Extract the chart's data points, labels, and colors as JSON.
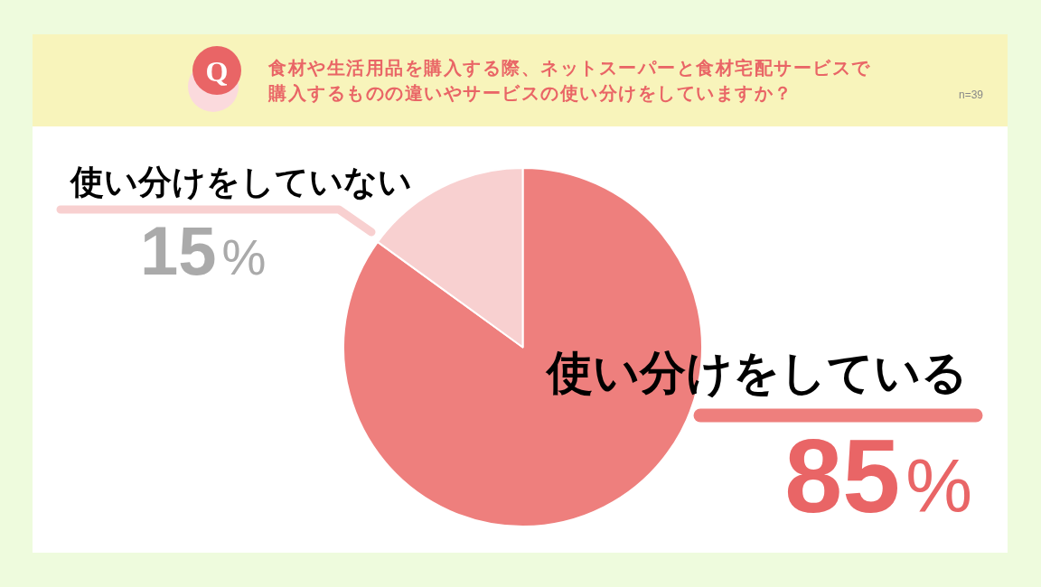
{
  "chart_data": {
    "type": "pie",
    "title": "食材や生活用品を購入する際、ネットスーパーと食材宅配サービスで購入するものの違いやサービスの使い分けをしていますか？",
    "categories": [
      "使い分けをしている",
      "使い分けをしていない"
    ],
    "values": [
      85,
      15
    ],
    "colors": [
      "#ee7f7d",
      "#f8d0d0"
    ],
    "value_labels": [
      "85%",
      "15%"
    ],
    "annotations": [
      "Q",
      "n=39"
    ]
  }
}
